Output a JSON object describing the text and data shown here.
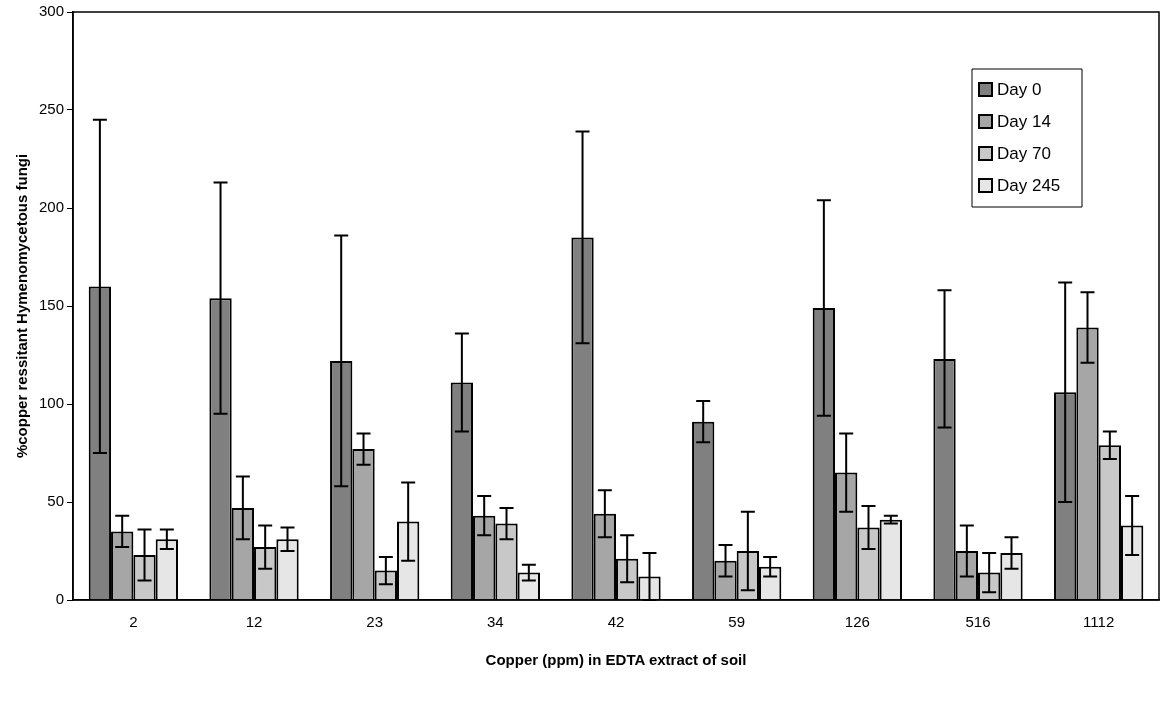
{
  "chart_data": {
    "type": "bar",
    "xlabel": "Copper (ppm) in EDTA extract of soil",
    "ylabel": "%copper ressitant Hymenomycetous fungi",
    "categories": [
      "2",
      "12",
      "23",
      "34",
      "42",
      "59",
      "126",
      "516",
      "1112"
    ],
    "series": [
      {
        "name": "Day 0",
        "color": "#808080",
        "values": [
          160,
          154,
          122,
          111,
          185,
          91,
          149,
          123,
          106
        ],
        "errors": [
          85,
          59,
          64,
          25,
          54,
          10.5,
          55,
          35,
          56
        ]
      },
      {
        "name": "Day 14",
        "color": "#a6a6a6",
        "values": [
          35,
          47,
          77,
          43,
          44,
          20,
          65,
          25,
          139
        ],
        "errors": [
          8,
          16,
          8,
          10,
          12,
          8,
          20,
          13,
          18
        ]
      },
      {
        "name": "Day 70",
        "color": "#c8c8c8",
        "values": [
          23,
          27,
          15,
          39,
          21,
          25,
          37,
          14,
          79
        ],
        "errors": [
          13,
          11,
          7,
          8,
          12,
          20,
          11,
          10,
          7
        ]
      },
      {
        "name": "Day 245",
        "color": "#e6e6e6",
        "values": [
          31,
          31,
          40,
          14,
          12,
          17,
          41,
          24,
          38
        ],
        "errors": [
          5,
          6,
          20,
          4,
          12,
          5,
          2,
          8,
          15
        ]
      }
    ],
    "ylim": [
      0,
      300
    ],
    "yticks": [
      0,
      50,
      100,
      150,
      200,
      250,
      300
    ],
    "grid": false,
    "legend": "top right"
  }
}
